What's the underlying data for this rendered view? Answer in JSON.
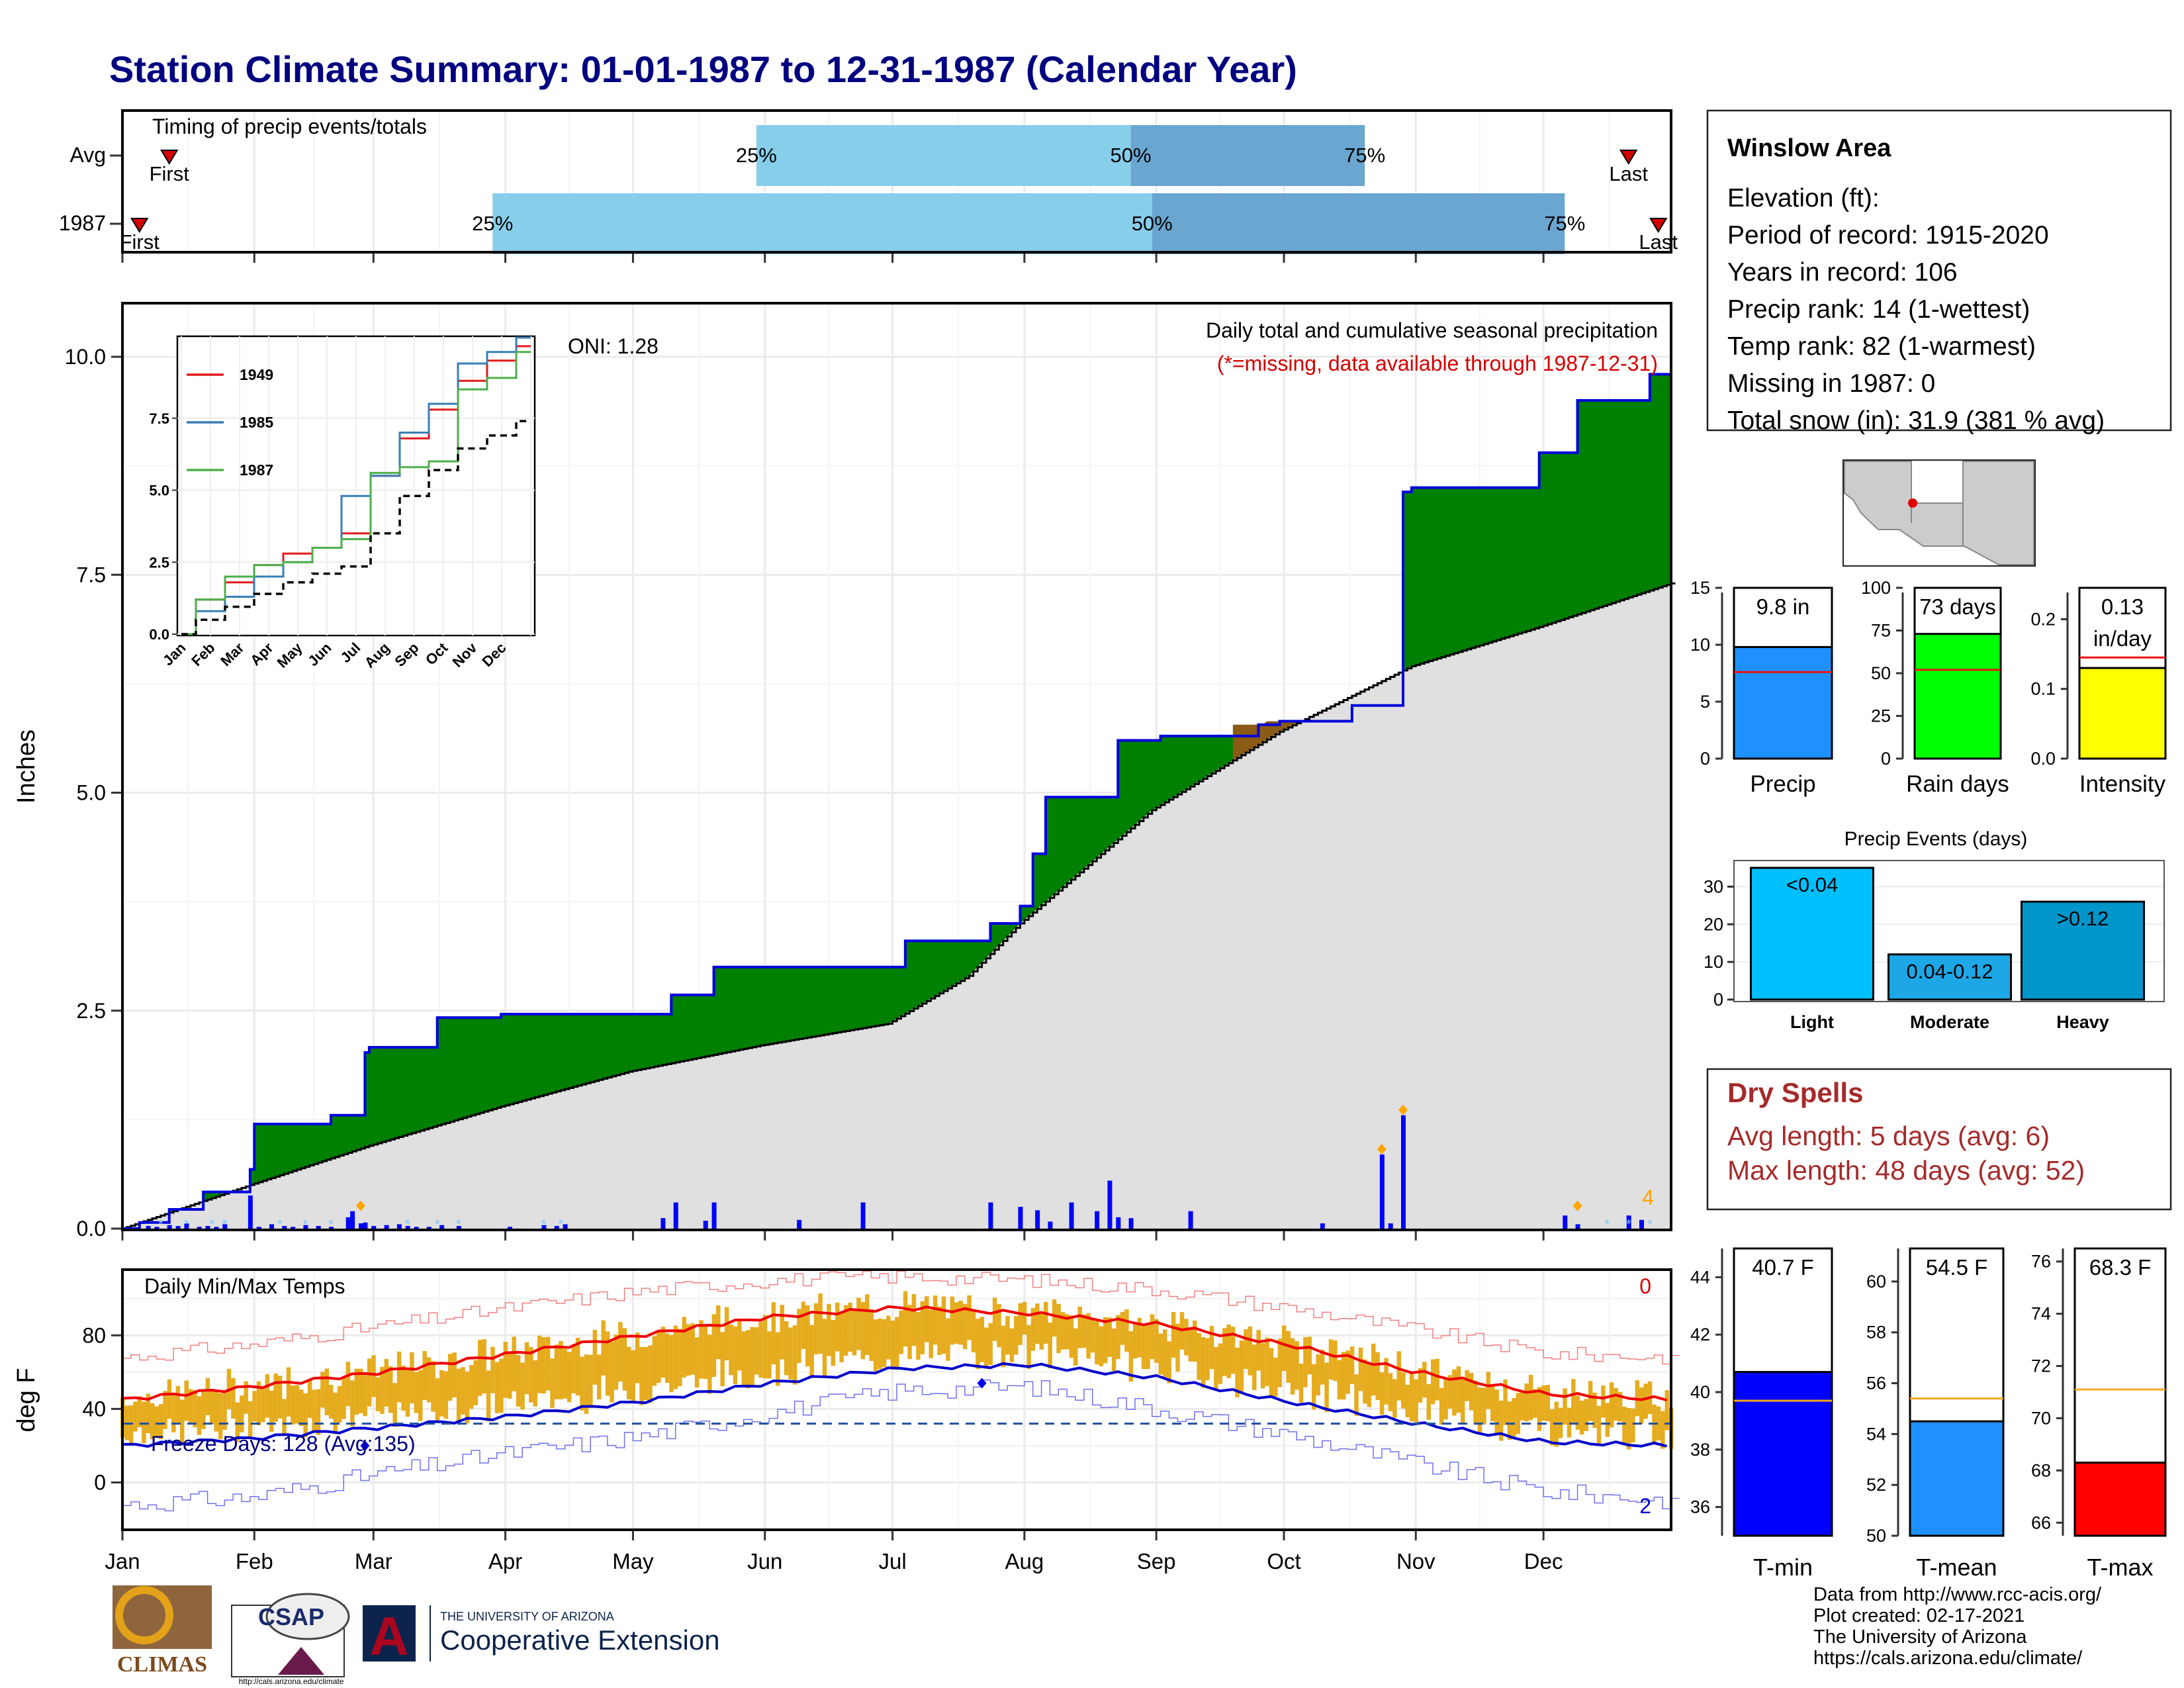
{
  "title": "Station Climate Summary: 01-01-1987 to 12-31-1987 (Calendar Year)",
  "colors": {
    "title": "#000080",
    "light_blue": "#87ceeb",
    "steel_blue": "#6aa6d0",
    "precip_green": "#008000",
    "deficit_brown": "#8b5a14",
    "avg_fill": "#e0e0e0",
    "precip_bar": "#0000ff",
    "line_1949": "#e41a1c",
    "line_1985": "#377eb8",
    "line_1987": "#4daf4a",
    "temp_bar": "#e6ac1f",
    "tmax_line": "#ee0000",
    "tmin_line": "#0000cc",
    "green_bar": "#00ff00",
    "yellow_bar": "#ffff00",
    "light_cyan": "#00bfff",
    "mid_cyan": "#1ea7e6",
    "heavy_cyan": "#0096cc",
    "orange": "#ffa500"
  },
  "timing": {
    "label": "Timing of precip events/totals",
    "rows": [
      {
        "label": "Avg",
        "first_day": 12,
        "p25_day": 150,
        "p50_day": 238,
        "p75_day": 293,
        "last_day": 355
      },
      {
        "label": "1987",
        "first_day": 5,
        "p25_day": 88,
        "p50_day": 243,
        "p75_day": 340,
        "last_day": 362
      }
    ],
    "markers": {
      "p25": "25%",
      "p50": "50%",
      "p75": "75%",
      "first": "First",
      "last": "Last"
    }
  },
  "station": {
    "name": "Winslow Area",
    "lines": [
      "Elevation (ft):",
      "Period of record: 1915-2020",
      "Years in record: 106",
      "Precip rank: 14 (1-wettest)",
      "Temp rank: 82 (1-warmest)",
      "Missing in 1987: 0",
      "Total snow (in): 31.9 (381 % avg)"
    ]
  },
  "main_precip": {
    "ylabel": "Inches",
    "caption": "Daily total and cumulative seasonal precipitation",
    "missing_note": "(*=missing, data available through 1987-12-31)",
    "oni": "ONI: 1.28",
    "snow_count_label": "4",
    "yticks": [
      "0.0",
      "2.5",
      "5.0",
      "7.5",
      "10.0"
    ],
    "ylim": [
      0,
      10.6
    ]
  },
  "months": [
    "Jan",
    "Feb",
    "Mar",
    "Apr",
    "May",
    "Jun",
    "Jul",
    "Aug",
    "Sep",
    "Oct",
    "Nov",
    "Dec"
  ],
  "inset": {
    "yticks": [
      "0.0",
      "2.5",
      "5.0",
      "7.5"
    ],
    "legend": [
      "1949",
      "1985",
      "1987"
    ]
  },
  "temps": {
    "ylabel": "deg F",
    "label": "Daily Min/Max Temps",
    "freeze_label": "Freeze Days: 128 (Avg:135)",
    "missing_top": "0",
    "missing_bottom": "2",
    "yticks": [
      "0",
      "40",
      "80"
    ]
  },
  "bar_panels": {
    "precip": {
      "value_label": "9.8 in",
      "xlabel": "Precip",
      "yticks": [
        "0",
        "5",
        "10",
        "15"
      ]
    },
    "rain_days": {
      "value_label": "73 days",
      "xlabel": "Rain days",
      "yticks": [
        "0",
        "25",
        "50",
        "75",
        "100"
      ]
    },
    "intensity": {
      "value_label_1": "0.13",
      "value_label_2": "in/day",
      "xlabel": "Intensity",
      "yticks": [
        "0.0",
        "0.1",
        "0.2"
      ]
    }
  },
  "events": {
    "title": "Precip Events (days)",
    "yticks": [
      "0",
      "10",
      "20",
      "30"
    ],
    "categories": [
      "Light",
      "Moderate",
      "Heavy"
    ],
    "bar_labels": [
      "<0.04",
      "0.04-0.12",
      ">0.12"
    ]
  },
  "dry_spells": {
    "title": "Dry Spells",
    "avg_length": "Avg length: 5 days (avg: 6)",
    "max_length": "Max length: 48 days (avg: 52)"
  },
  "temp_bars": {
    "tmin": {
      "value_label": "40.7 F",
      "xlabel": "T-min",
      "yticks": [
        "36",
        "38",
        "40",
        "42",
        "44"
      ]
    },
    "tmean": {
      "value_label": "54.5 F",
      "xlabel": "T-mean",
      "yticks": [
        "50",
        "52",
        "54",
        "56",
        "58",
        "60"
      ]
    },
    "tmax": {
      "value_label": "68.3 F",
      "xlabel": "T-max",
      "yticks": [
        "66",
        "68",
        "70",
        "72",
        "74",
        "76"
      ]
    }
  },
  "footer": {
    "lines": [
      "Data from http://www.rcc-acis.org/",
      "Plot created: 02-17-2021",
      "The University of Arizona",
      "https://cals.arizona.edu/climate/"
    ],
    "climas": "CLIMAS",
    "csap": "CSAP",
    "csap_url": "http://cals.arizona.edu/climate",
    "ua_small": "THE UNIVERSITY OF ARIZONA",
    "ua_big": "Cooperative Extension"
  },
  "chart_data": [
    {
      "type": "area",
      "title": "Daily total and cumulative seasonal precipitation",
      "ylabel": "Inches",
      "x_unit": "day of year",
      "ylim": [
        0,
        10.6
      ],
      "series": [
        {
          "name": "1987",
          "x": [
            1,
            5,
            12,
            20,
            31,
            32,
            50,
            58,
            59,
            75,
            90,
            100,
            130,
            140,
            175,
            185,
            195,
            205,
            212,
            215,
            218,
            230,
            235,
            245,
            265,
            268,
            273,
            280,
            288,
            290,
            300,
            302,
            304,
            334,
            343,
            360,
            365
          ],
          "values": [
            0.0,
            0.07,
            0.22,
            0.42,
            0.68,
            1.2,
            1.3,
            2.02,
            2.08,
            2.42,
            2.46,
            2.46,
            2.68,
            3.0,
            3.0,
            3.3,
            3.3,
            3.5,
            3.7,
            4.3,
            4.95,
            4.95,
            5.6,
            5.65,
            5.65,
            5.78,
            5.82,
            5.82,
            5.82,
            6.0,
            6.0,
            8.45,
            8.5,
            8.9,
            9.5,
            9.8,
            9.8
          ]
        },
        {
          "name": "",
          "x": [
            1,
            31,
            59,
            90,
            120,
            151,
            181,
            200,
            212,
            243,
            273,
            304,
            334,
            365
          ],
          "values": [
            0.0,
            0.5,
            0.95,
            1.4,
            1.8,
            2.1,
            2.35,
            2.9,
            3.5,
            4.8,
            5.7,
            6.45,
            6.9,
            7.4
          ]
        }
      ],
      "daily_precip": {
        "x": [
          7,
          9,
          12,
          14,
          16,
          19,
          21,
          23,
          25,
          31,
          33,
          36,
          39,
          41,
          44,
          47,
          50,
          54,
          55,
          57,
          58,
          60,
          63,
          66,
          68,
          70,
          73,
          76,
          80,
          92,
          100,
          103,
          105,
          128,
          131,
          138,
          140,
          160,
          175,
          205,
          212,
          216,
          219,
          224,
          230,
          233,
          235,
          238,
          252,
          283,
          297,
          299,
          302,
          340,
          343,
          355,
          358
        ],
        "values": [
          0.03,
          0.02,
          0.04,
          0.03,
          0.06,
          0.02,
          0.03,
          0.02,
          0.05,
          0.38,
          0.02,
          0.05,
          0.03,
          0.02,
          0.04,
          0.03,
          0.02,
          0.13,
          0.2,
          0.06,
          0.07,
          0.03,
          0.04,
          0.05,
          0.03,
          0.02,
          0.02,
          0.04,
          0.03,
          0.02,
          0.04,
          0.03,
          0.05,
          0.12,
          0.3,
          0.09,
          0.3,
          0.1,
          0.3,
          0.3,
          0.25,
          0.21,
          0.08,
          0.3,
          0.2,
          0.55,
          0.13,
          0.12,
          0.2,
          0.06,
          0.85,
          0.06,
          1.3,
          0.15,
          0.05,
          0.15,
          0.1
        ]
      }
    },
    {
      "type": "line",
      "title": "",
      "xlabel": "",
      "ylabel": "",
      "x": [
        "Jan",
        "Feb",
        "Mar",
        "Apr",
        "May",
        "Jun",
        "Jul",
        "Aug",
        "Sep",
        "Oct",
        "Nov",
        "Dec",
        "Dec end"
      ],
      "ylim": [
        0,
        10.3
      ],
      "series": [
        {
          "name": "1949",
          "values": [
            0.0,
            1.2,
            1.8,
            2.4,
            2.8,
            3.0,
            3.5,
            5.5,
            6.8,
            7.8,
            8.8,
            9.5,
            10.0
          ]
        },
        {
          "name": "1985",
          "values": [
            0.0,
            0.8,
            1.3,
            2.0,
            2.5,
            3.0,
            4.8,
            5.5,
            7.0,
            8.0,
            9.4,
            9.8,
            10.3
          ]
        },
        {
          "name": "1987",
          "values": [
            0.0,
            1.2,
            2.0,
            2.4,
            2.5,
            3.0,
            3.3,
            5.6,
            5.8,
            6.0,
            8.5,
            8.9,
            9.8
          ]
        },
        {
          "name": "",
          "values": [
            0.0,
            0.5,
            0.95,
            1.4,
            1.8,
            2.1,
            2.35,
            3.5,
            4.8,
            5.7,
            6.45,
            6.9,
            7.4
          ]
        }
      ]
    },
    {
      "type": "area",
      "title": "Daily Min/Max Temps",
      "ylabel": "deg F",
      "ylim": [
        -25,
        115
      ],
      "x": [
        "Jan",
        "Feb",
        "Mar",
        "Apr",
        "May",
        "Jun",
        "Jul",
        "Aug",
        "Sep",
        "Oct",
        "Nov",
        "Dec",
        "Dec end"
      ],
      "series": [
        {
          "name": "",
          "values": [
            45,
            52,
            60,
            70,
            80,
            90,
            95,
            92,
            86,
            75,
            60,
            48,
            45
          ]
        },
        {
          "name": "",
          "values": [
            20,
            24,
            30,
            36,
            44,
            54,
            62,
            64,
            57,
            44,
            32,
            22,
            20
          ]
        },
        {
          "name": "",
          "values": [
            68,
            75,
            85,
            95,
            104,
            110,
            112,
            110,
            105,
            95,
            83,
            70,
            68
          ]
        },
        {
          "name": "",
          "values": [
            -12,
            -8,
            5,
            16,
            25,
            38,
            50,
            52,
            40,
            26,
            10,
            -5,
            -10
          ]
        }
      ],
      "freeze_threshold": 32
    },
    {
      "type": "bar",
      "title": "",
      "categories": [
        "Precip"
      ],
      "values": [
        9.8
      ],
      "avg": 7.6,
      "ylim": [
        0,
        15
      ]
    },
    {
      "type": "bar",
      "title": "",
      "categories": [
        "Rain days"
      ],
      "values": [
        73
      ],
      "avg": 52,
      "ylim": [
        0,
        100
      ]
    },
    {
      "type": "bar",
      "title": "",
      "categories": [
        "Intensity"
      ],
      "values": [
        0.13
      ],
      "avg": 0.145,
      "ylim": [
        0,
        0.25
      ]
    },
    {
      "type": "bar",
      "title": "Precip Events (days)",
      "categories": [
        "Light",
        "Moderate",
        "Heavy"
      ],
      "values": [
        35,
        12,
        26
      ],
      "ylim": [
        0,
        35
      ]
    },
    {
      "type": "bar",
      "title": "",
      "categories": [
        "T-min"
      ],
      "values": [
        40.7
      ],
      "avg": 39.7,
      "ylim": [
        35,
        45
      ]
    },
    {
      "type": "bar",
      "title": "",
      "categories": [
        "T-mean"
      ],
      "values": [
        54.5
      ],
      "avg": 55.4,
      "ylim": [
        50,
        61
      ]
    },
    {
      "type": "bar",
      "title": "",
      "categories": [
        "T-max"
      ],
      "values": [
        68.3
      ],
      "avg": 71.1,
      "ylim": [
        65.5,
        76.5
      ]
    }
  ]
}
